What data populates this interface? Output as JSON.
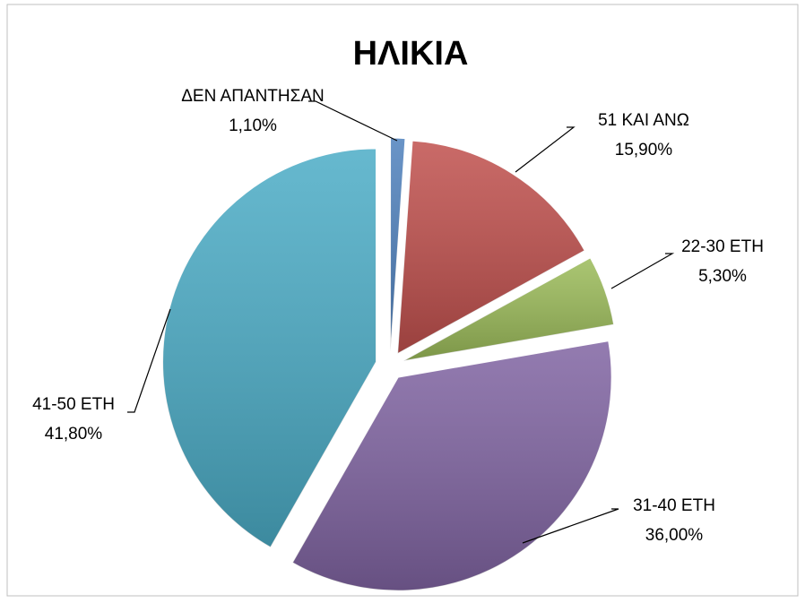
{
  "chart_data": {
    "type": "pie",
    "title": "ΗΛΙΚΙΑ",
    "categories": [
      "ΔΕΝ ΑΠΑΝΤΗΣΑΝ",
      "51 ΚΑΙ ΑΝΩ",
      "22-30 ΕΤΗ",
      "31-40 ΕΤΗ",
      "41-50 ΕΤΗ"
    ],
    "values": [
      1.1,
      15.9,
      5.3,
      36.0,
      41.8
    ],
    "value_labels": [
      "1,10%",
      "15,90%",
      "5,30%",
      "36,00%",
      "41,80%"
    ],
    "colors": [
      "#4f81bd",
      "#c0504d",
      "#9bbb59",
      "#8064a2",
      "#4bacc6"
    ]
  }
}
